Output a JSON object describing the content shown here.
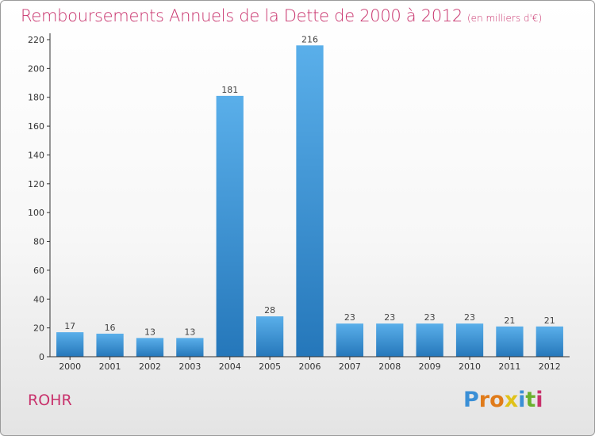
{
  "header": {
    "title": "Remboursements Annuels de la Dette de 2000 à 2012",
    "subtitle": "(en milliers d'€)"
  },
  "commune": "ROHR",
  "logo": {
    "text": "Proxiti",
    "letters": [
      "P",
      "r",
      "o",
      "x",
      "i",
      "t",
      "i"
    ],
    "colors": [
      "#3a8fd6",
      "#e07b1a",
      "#e07b1a",
      "#e0c21a",
      "#3a8fd6",
      "#6ab02e",
      "#c8326c"
    ]
  },
  "colors": {
    "accent": "#c8326c",
    "bar_top": "#5aafea",
    "bar_bottom": "#2577ba",
    "axis": "#333333"
  },
  "chart_data": {
    "type": "bar",
    "title": "Remboursements Annuels de la Dette de 2000 à 2012",
    "subtitle": "(en milliers d'€)",
    "categories": [
      "2000",
      "2001",
      "2002",
      "2003",
      "2004",
      "2005",
      "2006",
      "2007",
      "2008",
      "2009",
      "2010",
      "2011",
      "2012"
    ],
    "values": [
      17,
      16,
      13,
      13,
      181,
      28,
      216,
      23,
      23,
      23,
      23,
      21,
      21
    ],
    "ylim": [
      0,
      220
    ],
    "yticks": [
      0,
      20,
      40,
      60,
      80,
      100,
      120,
      140,
      160,
      180,
      200,
      220
    ],
    "xlabel": "",
    "ylabel": "",
    "grid": false,
    "data_labels": true
  }
}
